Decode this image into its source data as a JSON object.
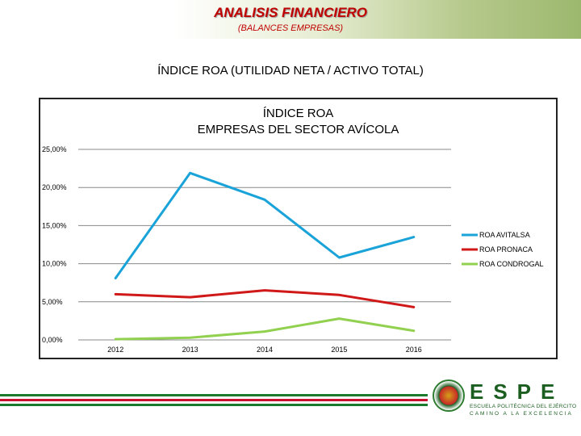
{
  "header": {
    "title": "ANALISIS FINANCIERO",
    "subtitle": "(BALANCES EMPRESAS)",
    "heading": "ÍNDICE ROA (UTILIDAD NETA / ACTIVO TOTAL)"
  },
  "chart_data": {
    "type": "line",
    "title_lines": [
      "ÍNDICE ROA",
      "EMPRESAS DEL SECTOR AVÍCOLA"
    ],
    "categories": [
      "2012",
      "2013",
      "2014",
      "2015",
      "2016"
    ],
    "y_ticks": [
      0,
      5,
      10,
      15,
      20,
      25
    ],
    "y_tick_labels": [
      "0,00%",
      "5,00%",
      "10,00%",
      "15,00%",
      "20,00%",
      "25,00%"
    ],
    "ylim": [
      0,
      25
    ],
    "grid": true,
    "legend_position": "right",
    "series": [
      {
        "name": "ROA AVITALSA",
        "color": "#1aa3d8",
        "values": [
          8.1,
          21.9,
          18.4,
          10.8,
          13.5
        ]
      },
      {
        "name": "ROA PRONACA",
        "color": "#d01818",
        "values": [
          6.0,
          5.6,
          6.5,
          5.9,
          4.3
        ]
      },
      {
        "name": "ROA CONDROGAL",
        "color": "#92d050",
        "values": [
          0.1,
          0.3,
          1.1,
          2.8,
          1.2
        ]
      }
    ]
  },
  "footer": {
    "stripe_colors": [
      "#1b7a2c",
      "#ffffff",
      "#c8102e",
      "#ffffff",
      "#1b7a2c"
    ],
    "logo": {
      "letters": "ESPE",
      "line1": "ESCUELA POLITÉCNICA DEL EJÉRCITO",
      "line2": "CAMINO A LA EXCELENCIA"
    }
  }
}
